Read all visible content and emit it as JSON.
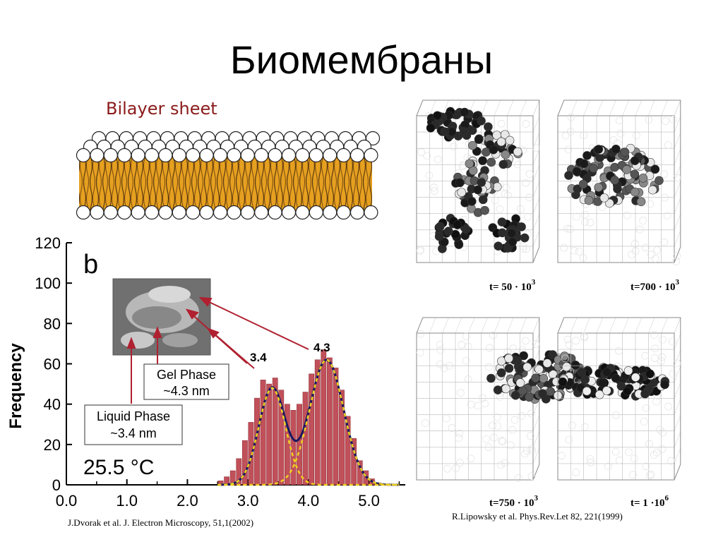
{
  "slide": {
    "title": "Биомембраны",
    "bilayer_caption": "Bilayer sheet",
    "citation_left": "J.Dvorak et al. J. Electron Microscopy, 51,1(2002)",
    "citation_right": "R.Lipowsky et al. Phys.Rev.Let 82, 221(1999)"
  },
  "colors": {
    "bars": "#c0505a",
    "fit": "#1a1a60",
    "gauss": "#f0d020",
    "caption": "#8b1a1a",
    "arrow": "#b02030",
    "tail": "#e8a020"
  },
  "chart_data": {
    "type": "bar",
    "panel_label": "b",
    "ylabel": "Frequency",
    "xlabel": "",
    "xlim": [
      0,
      5.6
    ],
    "ylim": [
      0,
      120
    ],
    "x_ticks": [
      "0.0",
      "1.0",
      "2.0",
      "3.0",
      "4.0",
      "5.0"
    ],
    "y_ticks": [
      "0",
      "20",
      "40",
      "60",
      "80",
      "100",
      "120"
    ],
    "peak_labels": [
      "3.4",
      "4.3"
    ],
    "temperature": "25.5 °C",
    "annotations": {
      "gel": [
        "Gel Phase",
        "~4.3 nm"
      ],
      "liquid": [
        "Liquid Phase",
        "~3.4 nm"
      ]
    },
    "series": [
      {
        "x": [
          2.55,
          2.65,
          2.75,
          2.85,
          2.95,
          3.05,
          3.15,
          3.25,
          3.35,
          3.45,
          3.55,
          3.65,
          3.75,
          3.85,
          3.95,
          4.05,
          4.15,
          4.25,
          4.35,
          4.45,
          4.55,
          4.65,
          4.75,
          4.85,
          4.95,
          5.05,
          5.15
        ],
        "values": [
          2,
          4,
          7,
          13,
          22,
          31,
          43,
          52,
          50,
          53,
          47,
          40,
          37,
          40,
          46,
          55,
          62,
          67,
          63,
          58,
          47,
          34,
          23,
          12,
          7,
          3,
          1
        ]
      }
    ]
  },
  "simulation": {
    "labels": [
      {
        "base": "t=  50 · 10",
        "exp": "3"
      },
      {
        "base": "t=700 · 10",
        "exp": "3"
      },
      {
        "base": "t=750 · 10",
        "exp": "3"
      },
      {
        "base": "t= 1 ·10",
        "exp": "6"
      }
    ]
  }
}
